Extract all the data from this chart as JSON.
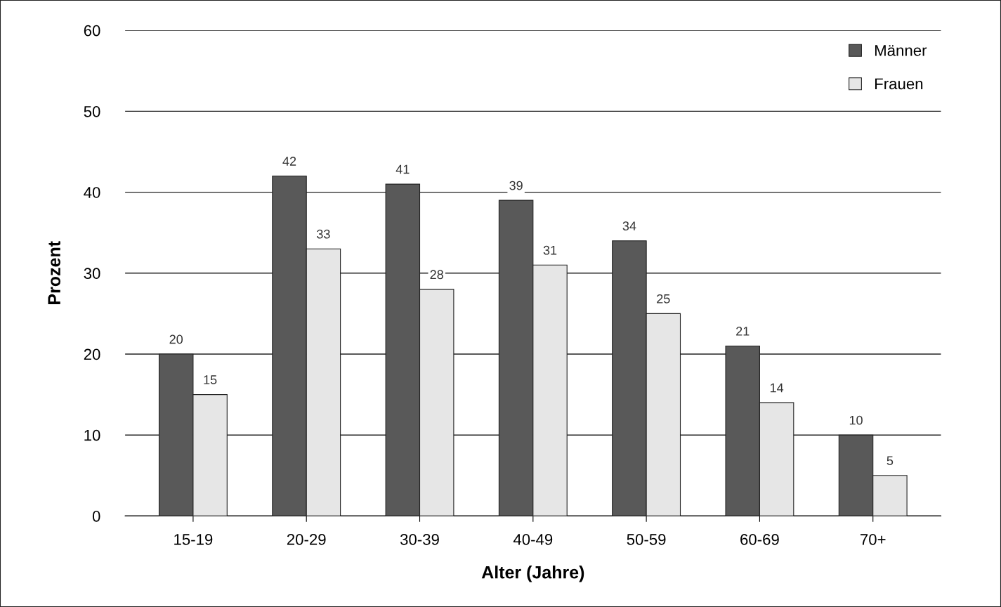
{
  "chart_data": {
    "type": "bar",
    "xlabel": "Alter (Jahre)",
    "ylabel": "Prozent",
    "categories": [
      "15-19",
      "20-29",
      "30-39",
      "40-49",
      "50-59",
      "60-69",
      "70+"
    ],
    "series": [
      {
        "name": "Männer",
        "color": "#595959",
        "values": [
          20,
          42,
          41,
          39,
          34,
          21,
          10
        ]
      },
      {
        "name": "Frauen",
        "color": "#e6e6e6",
        "values": [
          15,
          33,
          28,
          31,
          25,
          14,
          5
        ]
      }
    ],
    "ylim": [
      0,
      60
    ],
    "yticks": [
      0,
      10,
      20,
      30,
      40,
      50,
      60
    ],
    "grid": "y",
    "legend": "top right",
    "data_labels": true
  }
}
